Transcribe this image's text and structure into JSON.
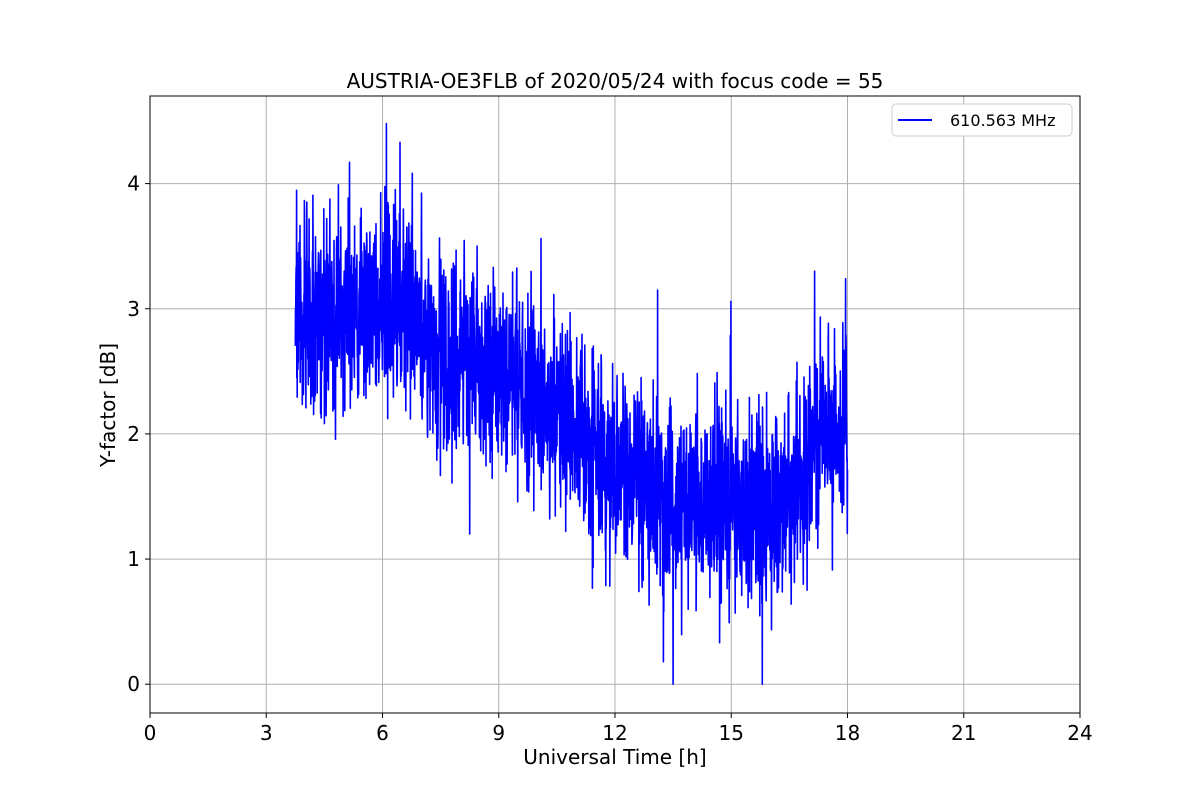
{
  "chart_data": {
    "type": "line",
    "title": "AUSTRIA-OE3FLB of 2020/05/24 with focus code = 55",
    "xlabel": "Universal Time [h]",
    "ylabel": "Y-factor [dB]",
    "xlim": [
      0,
      24
    ],
    "ylim": [
      -0.23,
      4.7
    ],
    "xticks": [
      0,
      3,
      6,
      9,
      12,
      15,
      18,
      21,
      24
    ],
    "yticks": [
      0,
      1,
      2,
      3,
      4
    ],
    "grid": true,
    "legend_position": "top-right",
    "line_color": "#0000ff",
    "series": [
      {
        "name": "610.563 MHz",
        "x_range": [
          3.75,
          18.0
        ],
        "trend_x": [
          3.75,
          4.5,
          5.5,
          6.5,
          7.5,
          8.5,
          9.5,
          10.5,
          11.5,
          12.5,
          13.5,
          14.5,
          15.5,
          16.0,
          16.5,
          17.0,
          17.5,
          18.0
        ],
        "trend_mean": [
          2.95,
          2.95,
          3.0,
          3.1,
          2.65,
          2.55,
          2.4,
          2.2,
          1.85,
          1.6,
          1.5,
          1.45,
          1.4,
          1.35,
          1.5,
          1.75,
          1.95,
          2.0
        ],
        "spread": 0.55,
        "peaks": [
          {
            "x": 6.1,
            "y": 4.48
          },
          {
            "x": 6.45,
            "y": 4.33
          },
          {
            "x": 5.15,
            "y": 4.17
          },
          {
            "x": 13.1,
            "y": 3.15
          },
          {
            "x": 17.15,
            "y": 3.3
          },
          {
            "x": 17.95,
            "y": 3.24
          }
        ],
        "troughs": [
          {
            "x": 13.5,
            "y": 0.0
          },
          {
            "x": 15.8,
            "y": 0.0
          },
          {
            "x": 13.25,
            "y": 0.18
          },
          {
            "x": 8.25,
            "y": 1.2
          }
        ]
      }
    ]
  }
}
